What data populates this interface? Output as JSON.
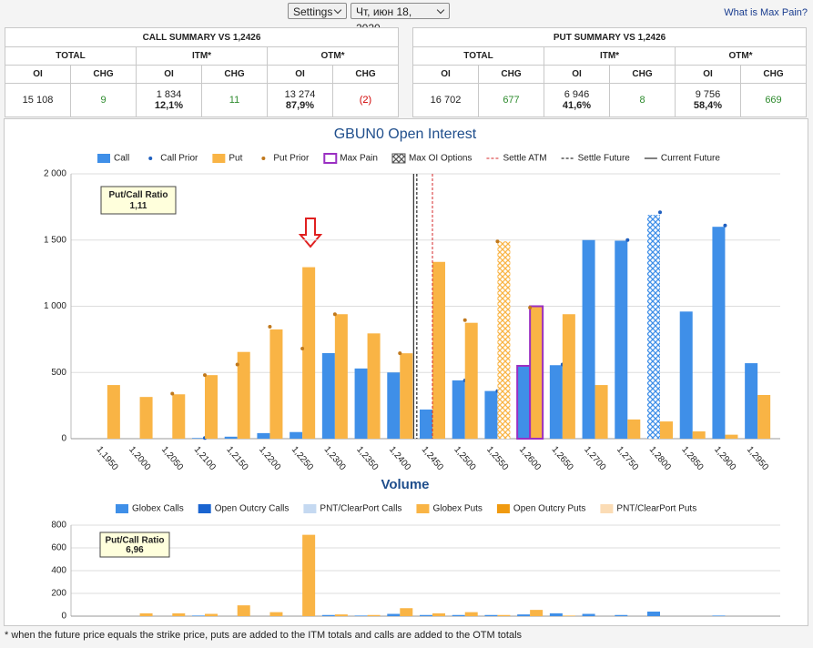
{
  "header": {
    "settings": "Settings",
    "date": "Чт, июн 18, 2020",
    "link": "What is Max Pain?"
  },
  "call_summary": {
    "title": "CALL SUMMARY VS 1,2426",
    "groups": [
      "TOTAL",
      "ITM*",
      "OTM*"
    ],
    "columns": [
      "OI",
      "CHG",
      "OI",
      "CHG",
      "OI",
      "CHG"
    ],
    "values": [
      "15 108",
      "9",
      "1 834",
      "11",
      "13 274",
      "(2)"
    ],
    "percents": [
      "12,1%",
      "87,9%"
    ]
  },
  "put_summary": {
    "title": "PUT SUMMARY VS 1,2426",
    "groups": [
      "TOTAL",
      "ITM*",
      "OTM*"
    ],
    "columns": [
      "OI",
      "CHG",
      "OI",
      "CHG",
      "OI",
      "CHG"
    ],
    "values": [
      "16 702",
      "677",
      "6 946",
      "8",
      "9 756",
      "669"
    ],
    "percents": [
      "41,6%",
      "58,4%"
    ]
  },
  "chart_data": [
    {
      "type": "bar",
      "title": "GBUN0 Open Interest",
      "categories": [
        "1,1950",
        "1,2000",
        "1,2050",
        "1,2100",
        "1,2150",
        "1,2200",
        "1,2250",
        "1,2300",
        "1,2350",
        "1,2400",
        "1,2450",
        "1,2500",
        "1,2550",
        "1,2600",
        "1,2650",
        "1,2700",
        "1,2750",
        "1,2800",
        "1,2850",
        "1,2900",
        "1,2950"
      ],
      "series": [
        {
          "name": "Call",
          "color": "#3f8fe8",
          "values": [
            0,
            0,
            0,
            5,
            15,
            42,
            50,
            646,
            530,
            500,
            220,
            440,
            360,
            550,
            555,
            1500,
            1495,
            1690,
            960,
            1600,
            570
          ]
        },
        {
          "name": "Call Prior",
          "color": "#1f5fbf",
          "marker": "dot",
          "values": [
            null,
            null,
            null,
            5,
            null,
            null,
            null,
            null,
            null,
            null,
            null,
            440,
            360,
            null,
            560,
            null,
            1500,
            1710,
            null,
            1610,
            null
          ]
        },
        {
          "name": "Put",
          "color": "#f9b445",
          "values": [
            405,
            315,
            335,
            480,
            655,
            825,
            1295,
            940,
            795,
            645,
            1335,
            875,
            1490,
            1000,
            940,
            405,
            145,
            130,
            55,
            30,
            330
          ]
        },
        {
          "name": "Put Prior",
          "color": "#c0781c",
          "marker": "dot",
          "values": [
            null,
            null,
            340,
            480,
            560,
            845,
            680,
            940,
            null,
            645,
            null,
            895,
            1490,
            990,
            null,
            null,
            null,
            null,
            null,
            null,
            null
          ]
        }
      ],
      "max_pain": {
        "name": "Max Pain",
        "category": "1,2600",
        "color": "#9a2fc2"
      },
      "max_oi": {
        "name": "Max OI Options",
        "call": "1,2800",
        "put": "1,2550"
      },
      "lines": [
        {
          "name": "Settle ATM",
          "value": 1.245,
          "color": "#d62728",
          "dash": "3,2"
        },
        {
          "name": "Settle Future",
          "value": 1.2426,
          "color": "#000000",
          "dash": "3,2"
        },
        {
          "name": "Current Future",
          "value": 1.2421,
          "color": "#000000"
        }
      ],
      "ratio": {
        "label": "Put/Call Ratio",
        "value": "1,11"
      },
      "ylim": [
        0,
        2000
      ],
      "yticks": [
        0,
        500,
        {
          "value": 1000,
          "label": "1 000"
        },
        {
          "value": 1500,
          "label": "1 500"
        },
        {
          "value": 2000,
          "label": "2 000"
        }
      ],
      "grid": true
    },
    {
      "type": "bar",
      "title": "Volume",
      "series": [
        {
          "name": "Globex Calls",
          "color": "#3f8fe8",
          "stack": "call",
          "values": [
            0,
            0,
            0,
            5,
            0,
            0,
            0,
            10,
            5,
            20,
            10,
            10,
            10,
            15,
            25,
            20,
            10,
            40,
            0,
            5,
            0
          ]
        },
        {
          "name": "Open Outcry Calls",
          "color": "#1a64d0",
          "stack": "call",
          "values": [
            0,
            0,
            0,
            0,
            0,
            0,
            0,
            0,
            0,
            0,
            0,
            0,
            0,
            0,
            0,
            0,
            0,
            0,
            0,
            0,
            0
          ]
        },
        {
          "name": "PNT/ClearPort Calls",
          "color": "#c5d9f1",
          "stack": "call",
          "values": [
            0,
            0,
            0,
            0,
            0,
            0,
            0,
            0,
            0,
            0,
            0,
            0,
            0,
            0,
            0,
            0,
            0,
            0,
            0,
            0,
            0
          ]
        },
        {
          "name": "Globex Puts",
          "color": "#f9b445",
          "stack": "put",
          "values": [
            0,
            25,
            25,
            20,
            95,
            35,
            715,
            15,
            10,
            70,
            25,
            35,
            10,
            55,
            5,
            0,
            0,
            0,
            0,
            0,
            0
          ]
        },
        {
          "name": "Open Outcry Puts",
          "color": "#f09a10",
          "stack": "put",
          "values": [
            0,
            0,
            0,
            0,
            0,
            0,
            0,
            0,
            0,
            0,
            0,
            0,
            0,
            0,
            0,
            0,
            0,
            0,
            0,
            0,
            0
          ]
        },
        {
          "name": "PNT/ClearPort Puts",
          "color": "#fbdcb5",
          "stack": "put",
          "values": [
            0,
            0,
            0,
            0,
            0,
            0,
            0,
            0,
            0,
            0,
            0,
            0,
            0,
            0,
            0,
            0,
            0,
            0,
            0,
            0,
            0
          ]
        }
      ],
      "ratio": {
        "label": "Put/Call Ratio",
        "value": "6,96"
      },
      "ylim": [
        0,
        800
      ],
      "yticks": [
        0,
        200,
        400,
        600,
        800
      ],
      "grid": true
    }
  ],
  "footnote": "* when the future price equals the strike price, puts are added to the ITM totals and calls are added to the OTM totals"
}
